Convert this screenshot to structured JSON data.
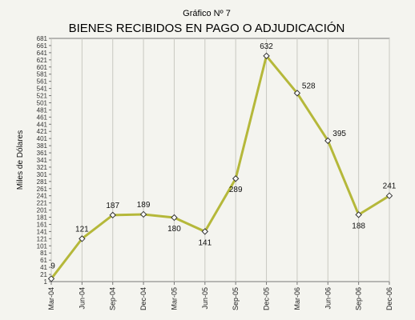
{
  "chart_data": {
    "type": "line",
    "title": "Gráfico Nº 7",
    "subtitle": "BIENES RECIBIDOS EN PAGO O ADJUDICACIÓN",
    "xlabel": "",
    "ylabel": "Miles de Dólares",
    "categories": [
      "Mar-04",
      "Jun-04",
      "Sep-04",
      "Dec-04",
      "Mar-05",
      "Jun-05",
      "Sep-05",
      "Dec-05",
      "Mar-06",
      "Jun-06",
      "Sep-06",
      "Dec-06"
    ],
    "values": [
      9,
      121,
      187,
      189,
      180,
      141,
      289,
      632,
      528,
      395,
      188,
      241
    ],
    "data_labels": [
      "9",
      "121",
      "187",
      "189",
      "180",
      "141",
      "289",
      "632",
      "528",
      "395",
      "188",
      "241"
    ],
    "y_ticks": [
      1,
      21,
      41,
      61,
      81,
      101,
      121,
      141,
      161,
      181,
      201,
      221,
      241,
      261,
      281,
      301,
      321,
      341,
      361,
      381,
      401,
      421,
      441,
      461,
      481,
      501,
      521,
      541,
      561,
      581,
      601,
      621,
      641,
      661,
      681
    ],
    "ylim": [
      1,
      681
    ],
    "grid": "vertical",
    "line_color": "#b5b83a",
    "marker_fill": "#ffffff",
    "marker_stroke": "#333333"
  }
}
